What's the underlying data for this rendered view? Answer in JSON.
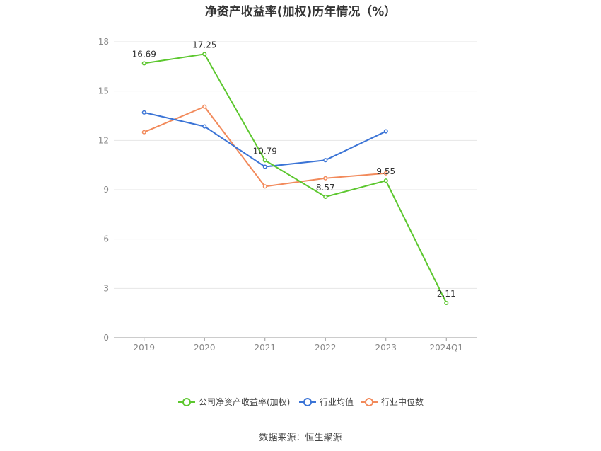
{
  "chart_data": {
    "type": "line",
    "title": "净资产收益率(加权)历年情况（%）",
    "categories": [
      "2019",
      "2020",
      "2021",
      "2022",
      "2023",
      "2024Q1"
    ],
    "ylim": [
      0,
      18
    ],
    "yticks": [
      0,
      3,
      6,
      9,
      12,
      15,
      18
    ],
    "grid": true,
    "legend_position": "bottom",
    "series": [
      {
        "name": "公司净资产收益率(加权)",
        "color": "#5cc72e",
        "values": [
          16.69,
          17.25,
          10.79,
          8.57,
          9.55,
          2.11
        ],
        "labels": [
          "16.69",
          "17.25",
          "10.79",
          "8.57",
          "9.55",
          "2.11"
        ]
      },
      {
        "name": "行业均值",
        "color": "#3b74d6",
        "values": [
          13.7,
          12.85,
          10.4,
          10.8,
          12.55,
          null
        ]
      },
      {
        "name": "行业中位数",
        "color": "#f28a5b",
        "values": [
          12.5,
          14.05,
          9.2,
          9.7,
          10.0,
          null
        ]
      }
    ]
  },
  "source": "数据来源：恒生聚源"
}
